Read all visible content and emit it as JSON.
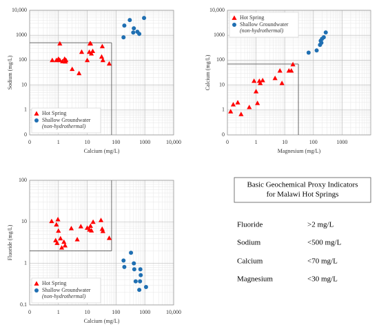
{
  "chart_data": [
    {
      "type": "scatter",
      "x_label": "Calcium (mg/L)",
      "y_label": "Sodium (mg/L)",
      "xscale": "log",
      "yscale": "log",
      "grid": true,
      "legend": "lower left",
      "xlim": [
        0.1,
        10000
      ],
      "ylim": [
        0.1,
        10000
      ],
      "xticks": [
        {
          "value": 0.1,
          "label": "0"
        },
        1,
        10,
        100,
        1000,
        {
          "value": 10000,
          "label": "10,000"
        }
      ],
      "yticks": [
        {
          "value": 0.1,
          "label": "0"
        },
        1,
        10,
        100,
        1000,
        {
          "value": 10000,
          "label": "10,000"
        }
      ],
      "thresholds": {
        "x": 70,
        "y": 500,
        "region": "lower left"
      },
      "series": [
        {
          "name": "Hot Spring",
          "color": "#ff0000",
          "marker": "triangle",
          "x": [
            0.61,
            0.85,
            1.0,
            1.12,
            1.39,
            1.64,
            1.73,
            1.83,
            1.12,
            3.0,
            5.2,
            6.4,
            10,
            11.8,
            12.4,
            13.1,
            13.9,
            15.5,
            31.6,
            33.3,
            35,
            58
          ],
          "values": [
            100,
            100,
            113,
            100,
            90,
            113,
            88,
            100,
            464,
            44,
            30,
            215,
            100,
            215,
            464,
            464,
            185,
            232,
            138,
            360,
            100,
            73
          ]
        },
        {
          "name": "Shallow Groundwater",
          "note": "(non-hydrothermal)",
          "color": "#1f6fb2",
          "marker": "circle",
          "x": [
            182,
            194,
            300,
            415,
            395,
            550,
            640,
            940
          ],
          "values": [
            826,
            2450,
            4060,
            1900,
            1290,
            1380,
            1130,
            4940
          ]
        }
      ]
    },
    {
      "type": "scatter",
      "x_label": "Magnesium (mg/L)",
      "y_label": "Calcium (mg/L)",
      "xscale": "log",
      "yscale": "log",
      "grid": true,
      "legend": "upper left",
      "xlim": [
        0.1,
        10000
      ],
      "ylim": [
        0.1,
        10000
      ],
      "xticks": [
        {
          "value": 0.1,
          "label": "0"
        },
        1,
        10,
        100,
        1000
      ],
      "yticks": [
        {
          "value": 0.1,
          "label": "0"
        },
        1,
        10,
        100,
        1000,
        {
          "value": 10000,
          "label": "10,000"
        }
      ],
      "thresholds": {
        "x": 30,
        "y": 70,
        "region": "lower left"
      },
      "series": [
        {
          "name": "Hot Spring",
          "color": "#ff0000",
          "marker": "triangle",
          "x": [
            0.13,
            0.16,
            0.23,
            0.3,
            0.58,
            0.85,
            1.0,
            1.12,
            1.3,
            1.4,
            1.7,
            4.6,
            6.8,
            8.0,
            14,
            17,
            19.3
          ],
          "values": [
            0.88,
            1.67,
            2.0,
            0.68,
            1.3,
            14.7,
            5.6,
            1.9,
            14.7,
            12,
            15.6,
            19,
            38,
            12,
            38,
            38,
            68
          ]
        },
        {
          "name": "Shallow Groundwater",
          "note": "(non-hydrothermal)",
          "color": "#1f6fb2",
          "marker": "circle",
          "x": [
            68,
            130,
            170,
            180,
            190,
            200,
            230,
            270
          ],
          "values": [
            200,
            245,
            410,
            600,
            500,
            720,
            830,
            1300
          ]
        }
      ]
    },
    {
      "type": "scatter",
      "x_label": "Calcium (mg/L)",
      "y_label": "Fluoride (mg/L)",
      "xscale": "log",
      "yscale": "log",
      "grid": true,
      "legend": "lower left",
      "xlim": [
        0.1,
        10000
      ],
      "ylim": [
        0.1,
        100
      ],
      "xticks": [
        {
          "value": 0.1,
          "label": "0"
        },
        1,
        10,
        100,
        1000,
        {
          "value": 10000,
          "label": "10,000"
        }
      ],
      "yticks": [
        0.1,
        1,
        10,
        100
      ],
      "thresholds": {
        "x": 70,
        "y": 2,
        "region": "upper left"
      },
      "series": [
        {
          "name": "Hot Spring",
          "color": "#ff0000",
          "marker": "triangle",
          "x": [
            0.58,
            0.85,
            0.8,
            1.0,
            0.96,
            0.9,
            1.18,
            1.3,
            1.55,
            1.7,
            2.8,
            4.5,
            6,
            10,
            12,
            13,
            14,
            16,
            30,
            33,
            35,
            58
          ],
          "values": [
            10.4,
            8.6,
            3.6,
            6.1,
            11.5,
            3.1,
            4.0,
            2.4,
            3.3,
            2.7,
            7.0,
            3.8,
            7.8,
            7.2,
            6.5,
            8.0,
            6.2,
            10.0,
            11.0,
            6.8,
            6.0,
            4.1
          ]
        },
        {
          "name": "Shallow Groundwater",
          "note": "(non-hydrothermal)",
          "color": "#1f6fb2",
          "marker": "circle",
          "x": [
            182,
            194,
            330,
            415,
            430,
            480,
            680,
            720,
            700,
            1100,
            640
          ],
          "values": [
            1.17,
            0.82,
            1.8,
            1.0,
            0.72,
            0.37,
            0.37,
            0.52,
            0.72,
            0.27,
            0.23
          ]
        }
      ]
    }
  ],
  "panel": {
    "title": [
      "Basic Geochemical Proxy Indicators",
      "for Malawi Hot Springs"
    ],
    "rows": [
      [
        "Fluoride",
        ">2 mg/L"
      ],
      [
        "Sodium",
        "<500 mg/L"
      ],
      [
        "Calcium",
        "<70 mg/L"
      ],
      [
        "Magnesium",
        "<30 mg/L"
      ]
    ]
  }
}
